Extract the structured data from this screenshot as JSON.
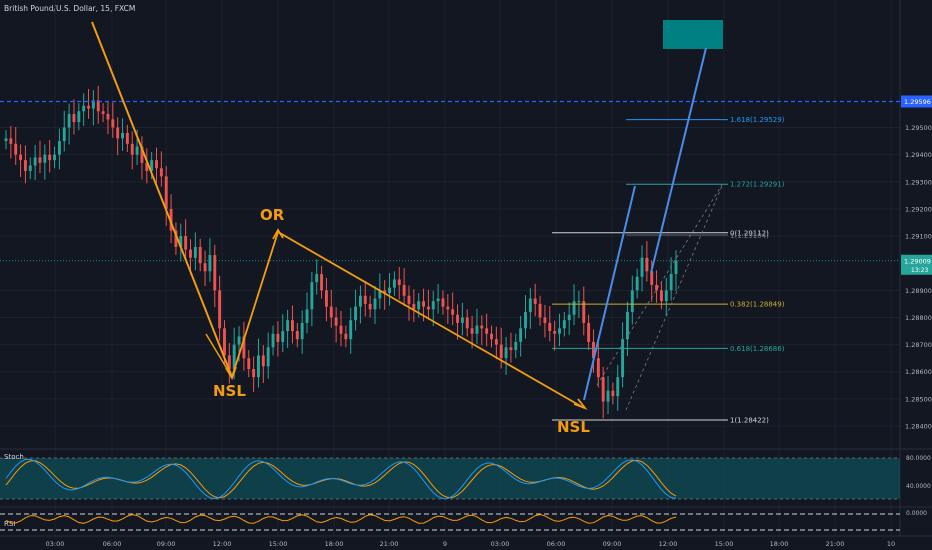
{
  "header": {
    "title": "British Pound/U.S. Dollar, 15, FXCM"
  },
  "chart_data": {
    "type": "candlestick",
    "symbol": "British Pound/U.S. Dollar",
    "interval": "15",
    "source": "FXCM",
    "y_range": [
      1.2833,
      1.2997
    ],
    "y_ticks": [
      "1.29500",
      "1.29400",
      "1.29300",
      "1.29200",
      "1.29100",
      "1.28900",
      "1.28800",
      "1.28700",
      "1.28600",
      "1.28500",
      "1.28400"
    ],
    "x_ticks": [
      "03:00",
      "06:00",
      "09:00",
      "12:00",
      "15:00",
      "18:00",
      "21:00",
      "9",
      "03:00",
      "06:00",
      "09:00",
      "12:00",
      "15:00",
      "18:00",
      "21:00",
      "10"
    ],
    "price_labels": {
      "top": {
        "value": 1.29596,
        "text": "1.29596",
        "color": "#2962ff"
      },
      "current": {
        "value": 1.29009,
        "text": "1.29009",
        "countdown": "13:23",
        "color": "#26a69a"
      }
    },
    "fib_levels": [
      {
        "ratio": 1.618,
        "price": 1.29529,
        "text": "1.618(1.29529)",
        "color": "#2196f3"
      },
      {
        "ratio": 1.272,
        "price": 1.29291,
        "text": "1.272(1.29291)",
        "color": "#26a69a"
      },
      {
        "ratio": 0,
        "price": 1.29112,
        "text": "0(1.29112)",
        "color": "#d1d4dc"
      },
      {
        "ratio": 0.382,
        "price": 1.28849,
        "text": "0.382(1.28849)",
        "color": "#c9b037"
      },
      {
        "ratio": 0.618,
        "price": 1.28686,
        "text": "0.618(1.28686)",
        "color": "#26a69a"
      },
      {
        "ratio": 1,
        "price": 1.28422,
        "text": "1(1.28422)",
        "color": "#d1d4dc"
      }
    ],
    "extra_label": {
      "text": "1(1.29104)",
      "price": 1.29104
    },
    "annotations": [
      {
        "text": "OR",
        "color": "#f39c12"
      },
      {
        "text": "NSL",
        "color": "#f39c12"
      },
      {
        "text": "NSL",
        "color": "#f39c12"
      }
    ],
    "indicators": {
      "stoch": {
        "label": "Stoch",
        "ticks": [
          "80.0000",
          "40.0000"
        ]
      },
      "rsi": {
        "label": "RSI",
        "ticks": [
          "0.0000"
        ]
      }
    },
    "colors": {
      "up": "#26a69a",
      "down": "#ef5350",
      "bg": "#131722",
      "grid": "#1e222d",
      "orange": "#f39c12",
      "blue": "#4c8be8"
    },
    "candles_close": [
      1.2946,
      1.2944,
      1.294,
      1.2938,
      1.2934,
      1.2936,
      1.2939,
      1.2937,
      1.294,
      1.2938,
      1.294,
      1.2945,
      1.295,
      1.2955,
      1.2952,
      1.2956,
      1.2958,
      1.2957,
      1.296,
      1.2956,
      1.2955,
      1.2953,
      1.295,
      1.2946,
      1.2948,
      1.2944,
      1.294,
      1.2943,
      1.2937,
      1.2934,
      1.2938,
      1.2935,
      1.2932,
      1.292,
      1.2912,
      1.2906,
      1.291,
      1.2905,
      1.2902,
      1.2906,
      1.29,
      1.2897,
      1.2903,
      1.289,
      1.2876,
      1.2866,
      1.2861,
      1.287,
      1.2873,
      1.2865,
      1.2861,
      1.2858,
      1.2866,
      1.2862,
      1.2869,
      1.2874,
      1.2871,
      1.2875,
      1.2879,
      1.2875,
      1.2872,
      1.2878,
      1.2883,
      1.2893,
      1.2896,
      1.289,
      1.2884,
      1.288,
      1.2877,
      1.2874,
      1.2872,
      1.2879,
      1.2884,
      1.2888,
      1.2885,
      1.2883,
      1.2887,
      1.289,
      1.2889,
      1.2891,
      1.2894,
      1.2892,
      1.2888,
      1.2885,
      1.2883,
      1.2886,
      1.2884,
      1.2883,
      1.2886,
      1.2887,
      1.2884,
      1.2883,
      1.2881,
      1.2878,
      1.288,
      1.2876,
      1.2874,
      1.2877,
      1.2876,
      1.2874,
      1.2872,
      1.287,
      1.2865,
      1.2869,
      1.2868,
      1.2871,
      1.2876,
      1.2882,
      1.2887,
      1.2885,
      1.288,
      1.2878,
      1.2875,
      1.2874,
      1.2876,
      1.2879,
      1.2881,
      1.2886,
      1.2886,
      1.2878,
      1.2871,
      1.2865,
      1.2858,
      1.2849,
      1.2853,
      1.2851,
      1.2858,
      1.2872,
      1.2882,
      1.289,
      1.2895,
      1.2902,
      1.2897,
      1.2892,
      1.289,
      1.2886,
      1.289,
      1.2896,
      1.2901
    ]
  }
}
